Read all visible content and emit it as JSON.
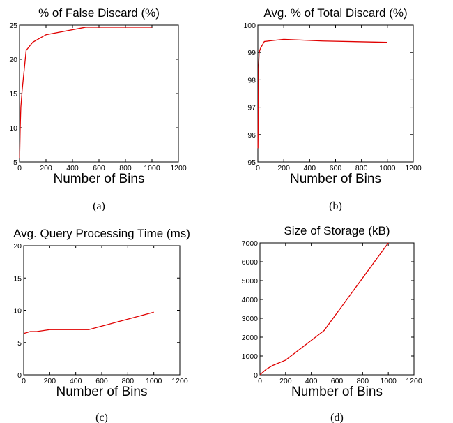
{
  "chart_data": [
    {
      "type": "line",
      "caption": "(a)",
      "title": "% of False Discard (%)",
      "xlabel": "Number of Bins",
      "ylabel": "",
      "xlim": [
        0,
        1200
      ],
      "ylim": [
        5,
        25
      ],
      "xticks": [
        0,
        200,
        400,
        600,
        800,
        1000,
        1200
      ],
      "yticks": [
        5,
        10,
        15,
        20,
        25
      ],
      "x": [
        1,
        5,
        10,
        20,
        50,
        100,
        200,
        500,
        1000
      ],
      "series": [
        {
          "values": [
            5.5,
            9.8,
            13.0,
            15.5,
            21.3,
            22.5,
            23.6,
            24.7,
            24.7
          ],
          "color": "#e00000"
        }
      ]
    },
    {
      "type": "line",
      "caption": "(b)",
      "title": "Avg. % of Total Discard (%)",
      "xlabel": "Number of Bins",
      "ylabel": "",
      "xlim": [
        0,
        1200
      ],
      "ylim": [
        95,
        100
      ],
      "xticks": [
        0,
        200,
        400,
        600,
        800,
        1000,
        1200
      ],
      "yticks": [
        95,
        96,
        97,
        98,
        99,
        100
      ],
      "x": [
        1,
        5,
        10,
        20,
        50,
        100,
        200,
        500,
        1000
      ],
      "series": [
        {
          "values": [
            95.5,
            98.4,
            99.0,
            99.15,
            99.4,
            99.43,
            99.48,
            99.42,
            99.37
          ],
          "color": "#e00000"
        }
      ]
    },
    {
      "type": "line",
      "caption": "(c)",
      "title": "Avg. Query Processing Time (ms)",
      "xlabel": "Number of Bins",
      "ylabel": "",
      "xlim": [
        0,
        1200
      ],
      "ylim": [
        0,
        20
      ],
      "xticks": [
        0,
        200,
        400,
        600,
        800,
        1000,
        1200
      ],
      "yticks": [
        0,
        5,
        10,
        15,
        20
      ],
      "x": [
        1,
        50,
        100,
        200,
        500,
        1000
      ],
      "series": [
        {
          "values": [
            6.4,
            6.7,
            6.7,
            7.0,
            7.0,
            9.7
          ],
          "color": "#e00000"
        }
      ]
    },
    {
      "type": "line",
      "caption": "(d)",
      "title": "Size of Storage (kB)",
      "xlabel": "Number of Bins",
      "ylabel": "",
      "xlim": [
        0,
        1200
      ],
      "ylim": [
        0,
        7000
      ],
      "xticks": [
        0,
        200,
        400,
        600,
        800,
        1000,
        1200
      ],
      "yticks": [
        0,
        1000,
        2000,
        3000,
        4000,
        5000,
        6000,
        7000
      ],
      "x": [
        1,
        50,
        100,
        200,
        500,
        1000
      ],
      "series": [
        {
          "values": [
            10,
            300,
            500,
            780,
            2350,
            7000
          ],
          "color": "#e00000"
        }
      ]
    }
  ]
}
